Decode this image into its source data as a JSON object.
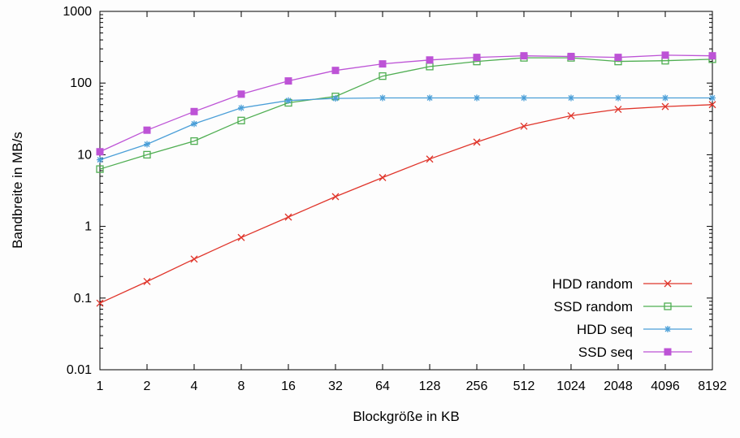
{
  "chart_data": {
    "type": "line",
    "title": "",
    "xlabel": "Blockgröße in KB",
    "ylabel": "Bandbreite in MB/s",
    "x_scale": "log2",
    "y_scale": "log10",
    "xlim": [
      1,
      8192
    ],
    "ylim": [
      0.01,
      1000
    ],
    "x": [
      1,
      2,
      4,
      8,
      16,
      32,
      64,
      128,
      256,
      512,
      1024,
      2048,
      4096,
      8192
    ],
    "xtick_labels": [
      "1",
      "2",
      "4",
      "8",
      "16",
      "32",
      "64",
      "128",
      "256",
      "512",
      "1024",
      "2048",
      "4096",
      "8192"
    ],
    "yticks": [
      0.01,
      0.1,
      1,
      10,
      100,
      1000
    ],
    "ytick_labels": [
      "0.01",
      "0.1",
      "1",
      "10",
      "100",
      "1000"
    ],
    "grid": false,
    "legend_position": "bottom-right-inside",
    "axis_color": "#000000",
    "series": [
      {
        "name": "HDD random",
        "color": "#e0352b",
        "marker": "x",
        "values": [
          0.085,
          0.17,
          0.35,
          0.7,
          1.35,
          2.6,
          4.8,
          8.7,
          15,
          25,
          35,
          43,
          47,
          50
        ]
      },
      {
        "name": "SSD random",
        "color": "#4fae52",
        "marker": "open-square",
        "values": [
          6.3,
          10,
          15.5,
          30,
          53,
          65,
          125,
          170,
          200,
          225,
          225,
          200,
          205,
          215
        ]
      },
      {
        "name": "HDD seq",
        "color": "#4b9fd8",
        "marker": "asterisk",
        "values": [
          8.5,
          14,
          27,
          45,
          57,
          61,
          62,
          62,
          62,
          62,
          62,
          62,
          62,
          62
        ]
      },
      {
        "name": "SSD seq",
        "color": "#bd53d6",
        "marker": "filled-square",
        "values": [
          11,
          22,
          40,
          70,
          107,
          150,
          185,
          210,
          228,
          240,
          235,
          228,
          245,
          240
        ]
      }
    ]
  }
}
